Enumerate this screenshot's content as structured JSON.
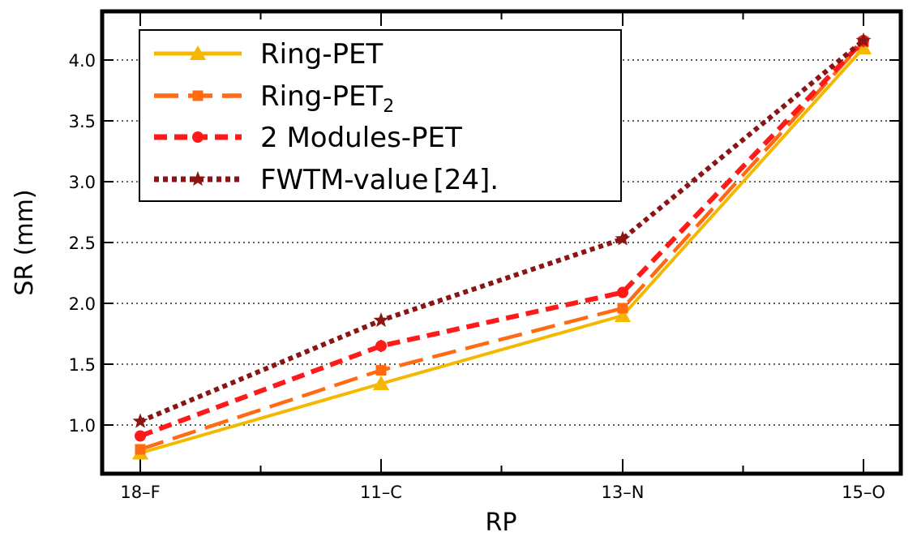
{
  "chart_data": {
    "type": "line",
    "xlabel": "RP",
    "ylabel": "SR (mm)",
    "categories": [
      "18–F",
      "11–C",
      "13–N",
      "15–O"
    ],
    "ylim": [
      0.6,
      4.4
    ],
    "yticks": [
      "1.0",
      "1.5",
      "2.0",
      "2.5",
      "3.0",
      "3.5",
      "4.0"
    ],
    "grid": "horizontal dotted",
    "legend_position": "top-left",
    "series": [
      {
        "name": "Ring-PET",
        "values": [
          0.77,
          1.34,
          1.9,
          4.1
        ],
        "errors": [
          0.03,
          0.04,
          0.03,
          0.05
        ],
        "color": "#f5b800",
        "line_style": "solid",
        "marker": "triangle"
      },
      {
        "name": "Ring-PET",
        "name_subscript": "2",
        "values": [
          0.8,
          1.45,
          1.96,
          4.15
        ],
        "errors": [
          0.03,
          0.04,
          0.03,
          0.05
        ],
        "color": "#ff6a13",
        "line_style": "long-dash",
        "marker": "square"
      },
      {
        "name": "2 Modules-PET",
        "values": [
          0.91,
          1.65,
          2.09,
          4.16
        ],
        "errors": [
          0.03,
          0.05,
          0.03,
          0.05
        ],
        "color": "#ff1a1a",
        "line_style": "dash",
        "marker": "circle"
      },
      {
        "name": "FWTM-value",
        "name_suffix_ref": "[24].",
        "values": [
          1.03,
          1.86,
          2.53,
          4.16
        ],
        "errors": [
          0,
          0,
          0,
          0
        ],
        "color": "#8b1414",
        "line_style": "dotted",
        "marker": "star"
      }
    ]
  }
}
